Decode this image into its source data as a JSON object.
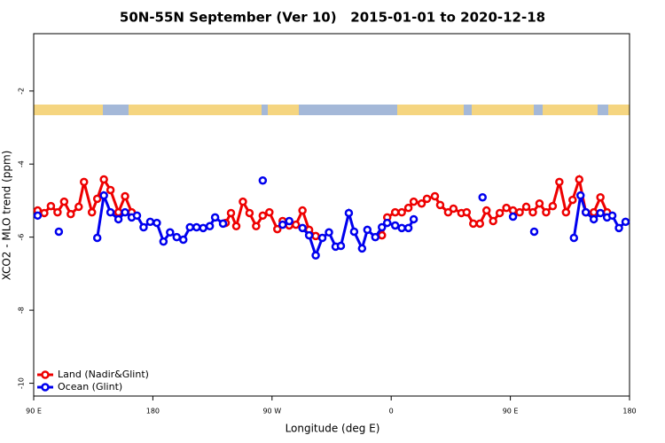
{
  "chart_data": {
    "type": "line",
    "title": "50N-55N September (Ver 10)   2015-01-01 to 2020-12-18",
    "x_label": "Longitude (deg E)",
    "y_label": "XCO2 - MLO trend (ppm)",
    "xlim": [
      90,
      540
    ],
    "ylim": [
      -10.35,
      -0.43
    ],
    "xticks": [
      {
        "value": 90,
        "label": "90 E"
      },
      180,
      {
        "value": 270,
        "label": "90 W"
      },
      {
        "value": 360,
        "label": "0"
      },
      {
        "value": 450,
        "label": "90 E"
      },
      {
        "value": 540,
        "label": "180"
      }
    ],
    "yticks": [
      -10,
      -8,
      -6,
      -4,
      -2
    ],
    "legend": "bottom-left",
    "series": [
      {
        "name": "Land (Nadir&Glint)",
        "color": "#ee0000",
        "x": [
          93,
          98,
          103,
          108,
          113,
          118,
          124,
          128,
          134,
          138,
          143,
          148,
          154,
          159,
          164,
          null,
          235,
          239,
          243,
          248,
          253,
          258,
          263,
          268,
          274,
          278,
          283,
          288,
          293,
          298,
          303,
          null,
          353,
          357,
          363,
          368,
          373,
          377,
          383,
          387,
          393,
          397,
          403,
          407,
          413,
          417,
          422,
          427,
          432,
          437,
          442,
          447,
          452,
          457,
          462,
          467,
          472,
          477,
          482,
          487,
          492,
          497,
          502,
          507,
          513,
          518,
          523
        ],
        "values": [
          -5.27,
          -5.34,
          -5.15,
          -5.32,
          -5.03,
          -5.37,
          -5.17,
          -4.49,
          -5.32,
          -4.95,
          -4.42,
          -4.71,
          -5.32,
          -4.88,
          -5.32,
          null,
          -5.61,
          -5.34,
          -5.7,
          -5.03,
          -5.34,
          -5.7,
          -5.41,
          -5.32,
          -5.78,
          -5.56,
          -5.68,
          -5.66,
          -5.27,
          -5.8,
          -5.97,
          null,
          -5.95,
          -5.46,
          -5.32,
          -5.32,
          -5.2,
          -5.03,
          -5.08,
          -4.95,
          -4.88,
          -5.12,
          -5.32,
          -5.22,
          -5.34,
          -5.32,
          -5.63,
          -5.63,
          -5.27,
          -5.56,
          -5.34,
          -5.2,
          -5.27,
          -5.32,
          -5.17,
          -5.32,
          -5.08,
          -5.32,
          -5.15,
          -4.49,
          -5.32,
          -4.98,
          -4.42,
          -5.32,
          -5.32,
          -4.91,
          -5.32
        ]
      },
      {
        "name": "Ocean (Glint)",
        "color": "#0000ee",
        "x": [
          93,
          null,
          109,
          null,
          138,
          143,
          148,
          154,
          159,
          164,
          168,
          173,
          178,
          183,
          188,
          193,
          198,
          203,
          208,
          213,
          218,
          223,
          227,
          233,
          null,
          263,
          null,
          278,
          283,
          null,
          293,
          298,
          303,
          308,
          313,
          318,
          322,
          328,
          332,
          338,
          342,
          348,
          353,
          357,
          363,
          368,
          373,
          377,
          null,
          429,
          null,
          452,
          null,
          468,
          null,
          498,
          503,
          507,
          513,
          518,
          523,
          527,
          532,
          537
        ],
        "values": [
          -5.41,
          null,
          -5.85,
          null,
          -6.02,
          -4.86,
          -5.32,
          -5.51,
          -5.32,
          -5.46,
          -5.41,
          -5.73,
          -5.58,
          -5.61,
          -6.12,
          -5.87,
          -6.0,
          -6.07,
          -5.73,
          -5.73,
          -5.75,
          -5.7,
          -5.46,
          -5.63,
          null,
          -4.45,
          null,
          -5.66,
          -5.56,
          null,
          -5.75,
          -5.95,
          -6.5,
          -6.02,
          -5.87,
          -6.26,
          -6.24,
          -5.34,
          -5.85,
          -6.31,
          -5.8,
          -6.0,
          -5.73,
          -5.61,
          -5.68,
          -5.75,
          -5.75,
          -5.51,
          null,
          -4.91,
          null,
          -5.44,
          null,
          -5.85,
          null,
          -6.02,
          -4.86,
          -5.32,
          -5.51,
          -5.34,
          -5.46,
          -5.41,
          -5.75,
          -5.58
        ]
      }
    ]
  }
}
